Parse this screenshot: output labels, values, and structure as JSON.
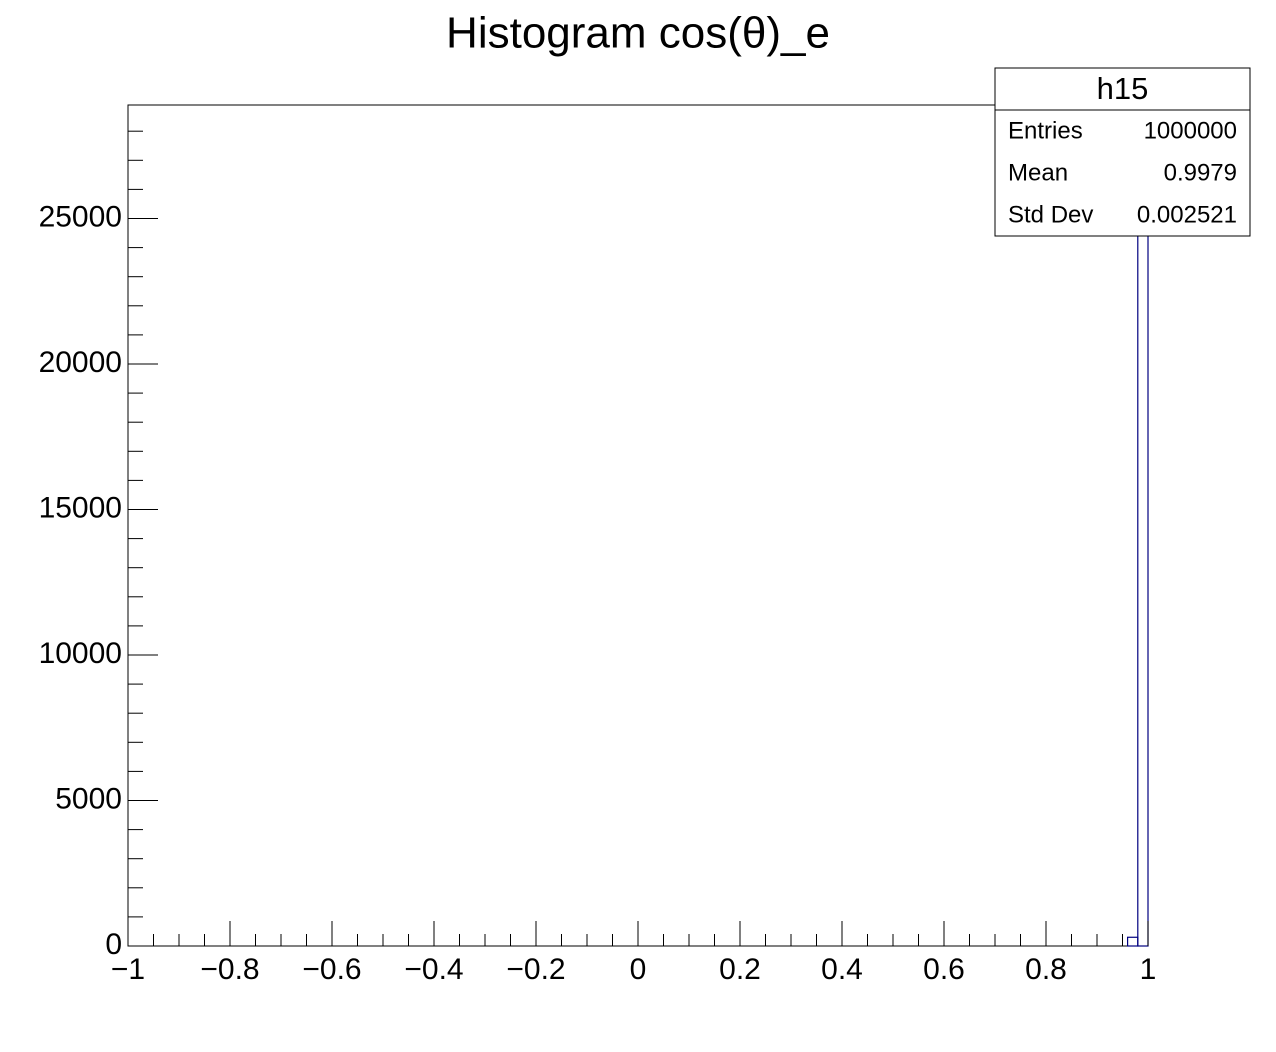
{
  "chart_data": {
    "type": "histogram",
    "title": "Histogram cos(θ)_e",
    "bins": [
      -1,
      -0.98,
      -0.96,
      -0.94,
      -0.92,
      -0.9,
      -0.88,
      -0.86,
      -0.84,
      -0.82,
      -0.8,
      -0.78,
      -0.76,
      -0.74,
      -0.72,
      -0.7,
      -0.68,
      -0.66,
      -0.64,
      -0.62,
      -0.6,
      -0.58,
      -0.56,
      -0.54,
      -0.52,
      -0.5,
      -0.48,
      -0.46,
      -0.44,
      -0.42,
      -0.4,
      -0.38,
      -0.36,
      -0.34,
      -0.32,
      -0.3,
      -0.28,
      -0.26,
      -0.24,
      -0.22,
      -0.2,
      -0.18,
      -0.16,
      -0.14,
      -0.12,
      -0.1,
      -0.08,
      -0.06,
      -0.04,
      -0.02,
      0,
      0.02,
      0.04,
      0.06,
      0.08,
      0.1,
      0.12,
      0.14,
      0.16,
      0.18,
      0.2,
      0.22,
      0.24,
      0.26,
      0.28,
      0.3,
      0.32,
      0.34,
      0.36,
      0.38,
      0.4,
      0.42,
      0.44,
      0.46,
      0.48,
      0.5,
      0.52,
      0.54,
      0.56,
      0.58,
      0.6,
      0.62,
      0.64,
      0.66,
      0.68,
      0.7,
      0.72,
      0.74,
      0.76,
      0.78,
      0.8,
      0.82,
      0.84,
      0.86,
      0.88,
      0.9,
      0.92,
      0.94,
      0.96,
      0.98,
      1
    ],
    "values": [
      0,
      0,
      0,
      0,
      0,
      0,
      0,
      0,
      0,
      0,
      0,
      0,
      0,
      0,
      0,
      0,
      0,
      0,
      0,
      0,
      0,
      0,
      0,
      0,
      0,
      0,
      0,
      0,
      0,
      0,
      0,
      0,
      0,
      0,
      0,
      0,
      0,
      0,
      0,
      0,
      0,
      0,
      0,
      0,
      0,
      0,
      0,
      0,
      0,
      0,
      0,
      0,
      0,
      0,
      0,
      0,
      0,
      0,
      0,
      0,
      0,
      0,
      0,
      0,
      0,
      0,
      0,
      0,
      0,
      0,
      0,
      0,
      0,
      0,
      0,
      0,
      0,
      0,
      0,
      0,
      0,
      0,
      0,
      0,
      0,
      0,
      0,
      0,
      0,
      0,
      0,
      0,
      0,
      0,
      0,
      0,
      0,
      0,
      300,
      27500
    ],
    "color": "#000080",
    "xlim": [
      -1,
      1
    ],
    "xticks": [
      {
        "value": -1,
        "label": "−1"
      },
      {
        "value": -0.8,
        "label": "−0.8"
      },
      {
        "value": -0.6,
        "label": "−0.6"
      },
      {
        "value": -0.4,
        "label": "−0.4"
      },
      {
        "value": -0.2,
        "label": "−0.2"
      },
      0,
      0.2,
      0.4,
      0.6,
      0.8,
      1
    ],
    "ylim": [
      0,
      28900
    ],
    "yticks": [
      0,
      5000,
      10000,
      15000,
      20000,
      25000
    ],
    "stats": {
      "title": "h15",
      "rows": [
        [
          "Entries",
          "1000000"
        ],
        [
          "Mean",
          "0.9979"
        ],
        [
          "Std Dev",
          "0.002521"
        ]
      ]
    }
  }
}
